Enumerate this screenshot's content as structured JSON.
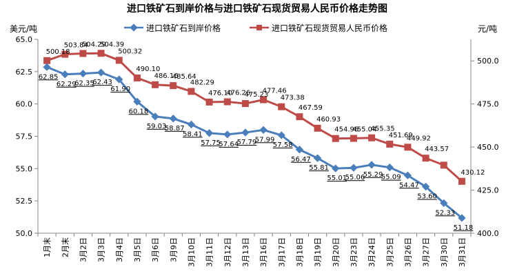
{
  "chart_data": {
    "type": "line",
    "title": "进口铁矿石到岸价格与进口铁矿石现货贸易人民币价格走势图",
    "ylabel_left": "美元/吨",
    "ylabel_right": "元/吨",
    "ylim_left": [
      50.0,
      65.0
    ],
    "ylim_right": [
      400.0,
      512.5
    ],
    "yticks_left": [
      "50.0",
      "52.5",
      "55.0",
      "57.5",
      "60.0",
      "62.5",
      "65.0"
    ],
    "yticks_right": [
      "400.0",
      "425.0",
      "450.0",
      "475.0",
      "500.0"
    ],
    "grid": false,
    "legend_position": "top",
    "categories": [
      "1月末",
      "2月末",
      "3月2日",
      "3月3日",
      "3月4日",
      "3月5日",
      "3月6日",
      "3月9日",
      "3月10日",
      "3月11日",
      "3月12日",
      "3月13日",
      "3月16日",
      "3月17日",
      "3月18日",
      "3月19日",
      "3月20日",
      "3月23日",
      "3月24日",
      "3月25日",
      "3月26日",
      "3月27日",
      "3月30日",
      "3月31日"
    ],
    "series": [
      {
        "name": "进口铁矿石到岸价格",
        "axis": "left",
        "color": "#4a7ebb",
        "marker": "diamond",
        "values": [
          62.85,
          62.29,
          62.35,
          62.43,
          61.9,
          60.18,
          59.03,
          58.87,
          58.41,
          57.75,
          57.64,
          57.79,
          57.99,
          57.58,
          56.47,
          55.81,
          55.01,
          55.06,
          55.29,
          55.09,
          54.47,
          53.6,
          52.33,
          51.18
        ],
        "labels": [
          "62.85",
          "62.29",
          "62.35",
          "62.43",
          "61.90",
          "60.18",
          "59.03",
          "58.87",
          "58.41",
          "57.75",
          "57.64",
          "57.79",
          "57.99",
          "57.58",
          "56.47",
          "55.81",
          "55.01",
          "55.06",
          "55.29",
          "55.09",
          "54.47",
          "53.60",
          "52.33",
          "51.18"
        ]
      },
      {
        "name": "进口铁矿石现货贸易人民币价格",
        "axis": "right",
        "color": "#be4b48",
        "marker": "square",
        "values": [
          500.18,
          503.84,
          504.29,
          504.39,
          500.32,
          490.1,
          486.16,
          485.64,
          482.29,
          476.1,
          476.26,
          475.23,
          477.46,
          473.38,
          467.59,
          460.93,
          454.96,
          455.04,
          455.35,
          451.69,
          449.92,
          443.57,
          439.5,
          430.12
        ],
        "labels": [
          "500.18",
          "503.84",
          "504.29",
          "504.39",
          "500.32",
          "490.10",
          "486.16",
          "485.64",
          "482.29",
          "476.10",
          "476.26",
          "475.23",
          "477.46",
          "473.38",
          "467.59",
          "460.93",
          "454.96",
          "455.04",
          "455.35",
          "451.69",
          "449.92",
          "443.57",
          "",
          "430.12"
        ]
      }
    ]
  }
}
